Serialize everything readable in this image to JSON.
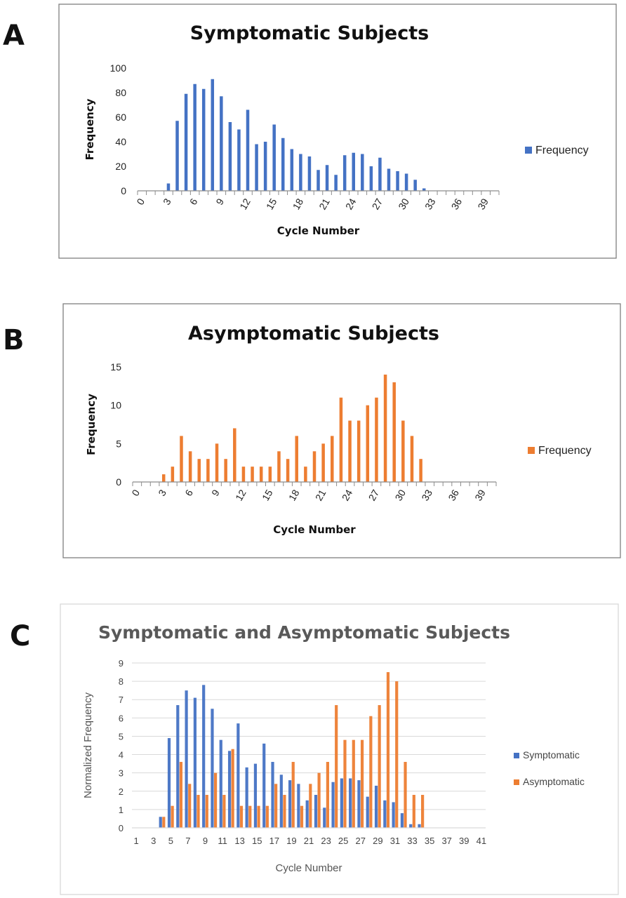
{
  "panels": {
    "a": "A",
    "b": "B",
    "c": "C"
  },
  "chart_data": [
    {
      "type": "bar",
      "title": "Symptomatic Subjects",
      "xlabel": "Cycle Number",
      "ylabel": "Frequency",
      "ylim": [
        0,
        100
      ],
      "yticks": [
        0,
        20,
        40,
        60,
        80,
        100
      ],
      "xtick_labels": [
        "0",
        "3",
        "6",
        "9",
        "12",
        "15",
        "18",
        "21",
        "24",
        "27",
        "30",
        "33",
        "36",
        "39"
      ],
      "categories": [
        0,
        1,
        2,
        3,
        4,
        5,
        6,
        7,
        8,
        9,
        10,
        11,
        12,
        13,
        14,
        15,
        16,
        17,
        18,
        19,
        20,
        21,
        22,
        23,
        24,
        25,
        26,
        27,
        28,
        29,
        30,
        31,
        32,
        33,
        34,
        35,
        36,
        37,
        38,
        39,
        40
      ],
      "series": [
        {
          "name": "Frequency",
          "color": "#4472c4",
          "values": [
            0,
            0,
            0,
            6,
            57,
            79,
            87,
            83,
            91,
            77,
            56,
            50,
            66,
            38,
            40,
            54,
            43,
            34,
            30,
            28,
            17,
            21,
            13,
            29,
            31,
            30,
            20,
            27,
            18,
            16,
            14,
            9,
            2,
            0,
            0,
            0,
            0,
            0,
            0,
            0,
            0
          ]
        }
      ],
      "legend": "right",
      "grid": false
    },
    {
      "type": "bar",
      "title": "Asymptomatic Subjects",
      "xlabel": "Cycle Number",
      "ylabel": "Frequency",
      "ylim": [
        0,
        15
      ],
      "yticks": [
        0,
        5,
        10,
        15
      ],
      "xtick_labels": [
        "0",
        "3",
        "6",
        "9",
        "12",
        "15",
        "18",
        "21",
        "24",
        "27",
        "30",
        "33",
        "36",
        "39"
      ],
      "categories": [
        0,
        1,
        2,
        3,
        4,
        5,
        6,
        7,
        8,
        9,
        10,
        11,
        12,
        13,
        14,
        15,
        16,
        17,
        18,
        19,
        20,
        21,
        22,
        23,
        24,
        25,
        26,
        27,
        28,
        29,
        30,
        31,
        32,
        33,
        34,
        35,
        36,
        37,
        38,
        39,
        40
      ],
      "series": [
        {
          "name": "Frequency",
          "color": "#ed7d31",
          "values": [
            0,
            0,
            0,
            1,
            2,
            6,
            4,
            3,
            3,
            5,
            3,
            7,
            2,
            2,
            2,
            2,
            4,
            3,
            6,
            2,
            4,
            5,
            6,
            11,
            8,
            8,
            10,
            11,
            14,
            13,
            8,
            6,
            3,
            0,
            0,
            0,
            0,
            0,
            0,
            0,
            0
          ]
        }
      ],
      "legend": "right",
      "grid": false
    },
    {
      "type": "bar",
      "title": "Symptomatic and Asymptomatic Subjects",
      "xlabel": "Cycle Number",
      "ylabel": "Normalized Frequency",
      "ylim": [
        0,
        9
      ],
      "yticks": [
        0,
        1,
        2,
        3,
        4,
        5,
        6,
        7,
        8,
        9
      ],
      "xtick_labels": [
        "1",
        "3",
        "5",
        "7",
        "9",
        "11",
        "13",
        "15",
        "17",
        "19",
        "21",
        "23",
        "25",
        "27",
        "29",
        "31",
        "33",
        "35",
        "37",
        "39",
        "41"
      ],
      "categories": [
        1,
        2,
        3,
        4,
        5,
        6,
        7,
        8,
        9,
        10,
        11,
        12,
        13,
        14,
        15,
        16,
        17,
        18,
        19,
        20,
        21,
        22,
        23,
        24,
        25,
        26,
        27,
        28,
        29,
        30,
        31,
        32,
        33,
        34,
        35,
        36,
        37,
        38,
        39,
        40,
        41
      ],
      "series": [
        {
          "name": "Symptomatic",
          "color": "#4472c4",
          "values": [
            0,
            0,
            0,
            0.6,
            4.9,
            6.7,
            7.5,
            7.1,
            7.8,
            6.5,
            4.8,
            4.2,
            5.7,
            3.3,
            3.5,
            4.6,
            3.6,
            2.9,
            2.6,
            2.4,
            1.5,
            1.8,
            1.1,
            2.5,
            2.7,
            2.7,
            2.6,
            1.7,
            2.3,
            1.5,
            1.4,
            0.8,
            0.2,
            0.2,
            0,
            0,
            0,
            0,
            0,
            0,
            0
          ]
        },
        {
          "name": "Asymptomatic",
          "color": "#ed7d31",
          "values": [
            0,
            0,
            0,
            0.6,
            1.2,
            3.6,
            2.4,
            1.8,
            1.8,
            3.0,
            1.8,
            4.3,
            1.2,
            1.2,
            1.2,
            1.2,
            2.4,
            1.8,
            3.6,
            1.2,
            2.4,
            3.0,
            3.6,
            6.7,
            4.8,
            4.8,
            4.8,
            6.1,
            6.7,
            8.5,
            8.0,
            3.6,
            1.8,
            1.8,
            0,
            0,
            0,
            0,
            0,
            0,
            0
          ]
        }
      ],
      "legend": "right",
      "grid": true
    }
  ]
}
